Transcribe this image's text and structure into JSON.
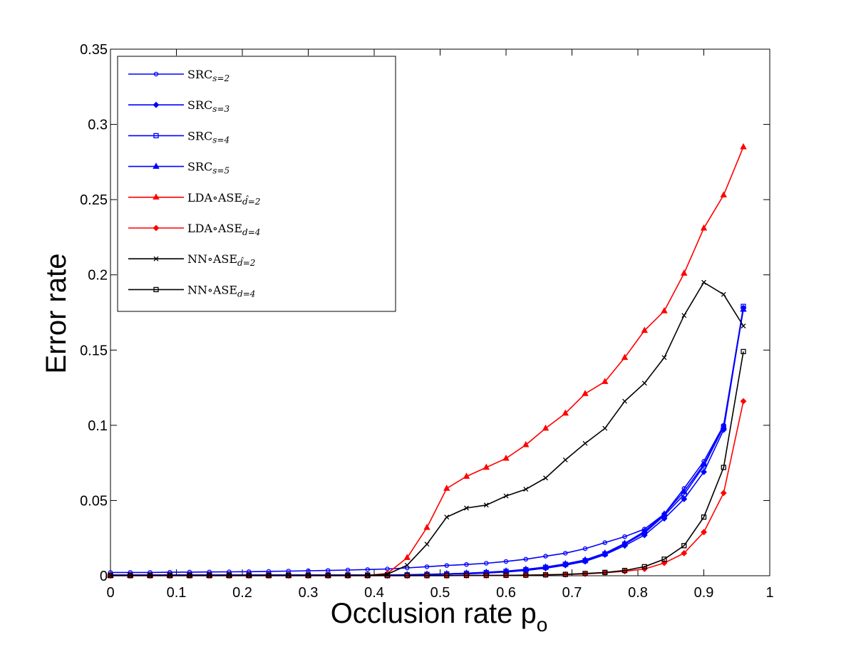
{
  "chart_data": {
    "type": "line",
    "xlabel": "Occlusion rate p",
    "xlabel_sub": "o",
    "ylabel": "Error rate",
    "xlim": [
      0,
      1
    ],
    "ylim": [
      0,
      0.35
    ],
    "grid": false,
    "legend_position": "top-left",
    "x_ticks": [
      "0",
      "0.1",
      "0.2",
      "0.3",
      "0.4",
      "0.5",
      "0.6",
      "0.7",
      "0.8",
      "0.9",
      "1"
    ],
    "y_ticks": [
      "0",
      "0.05",
      "0.1",
      "0.15",
      "0.2",
      "0.25",
      "0.3",
      "0.35"
    ],
    "x": [
      0,
      0.03,
      0.06,
      0.09,
      0.12,
      0.15,
      0.18,
      0.21,
      0.24,
      0.27,
      0.3,
      0.33,
      0.36,
      0.39,
      0.42,
      0.45,
      0.48,
      0.51,
      0.54,
      0.57,
      0.6,
      0.63,
      0.66,
      0.69,
      0.72,
      0.75,
      0.78,
      0.81,
      0.84,
      0.87,
      0.9,
      0.93,
      0.96
    ],
    "series": [
      {
        "name": "SRC",
        "name_sub": "s=2",
        "color": "#0000ff",
        "marker": "circle",
        "values": [
          0.0022,
          0.0022,
          0.0022,
          0.0023,
          0.0024,
          0.0025,
          0.0026,
          0.0027,
          0.0029,
          0.0031,
          0.0033,
          0.0035,
          0.0038,
          0.0041,
          0.0045,
          0.0052,
          0.006,
          0.0068,
          0.0075,
          0.0083,
          0.0095,
          0.011,
          0.013,
          0.015,
          0.018,
          0.022,
          0.026,
          0.031,
          0.041,
          0.058,
          0.076,
          0.1,
          0.178
        ]
      },
      {
        "name": "SRC",
        "name_sub": "s=3",
        "color": "#0000ff",
        "marker": "diamond",
        "values": [
          0.0005,
          0.0005,
          0.0005,
          0.0005,
          0.0005,
          0.0005,
          0.0005,
          0.0005,
          0.0005,
          0.0005,
          0.0005,
          0.0005,
          0.0005,
          0.0005,
          0.0005,
          0.0006,
          0.0008,
          0.001,
          0.0013,
          0.0018,
          0.0025,
          0.0035,
          0.005,
          0.007,
          0.0095,
          0.014,
          0.02,
          0.027,
          0.038,
          0.051,
          0.069,
          0.097,
          0.178
        ]
      },
      {
        "name": "SRC",
        "name_sub": "s=4",
        "color": "#0000ff",
        "marker": "square",
        "values": [
          0.0005,
          0.0005,
          0.0005,
          0.0005,
          0.0005,
          0.0005,
          0.0005,
          0.0005,
          0.0005,
          0.0005,
          0.0005,
          0.0005,
          0.0005,
          0.0005,
          0.0005,
          0.0006,
          0.0009,
          0.0012,
          0.0016,
          0.0021,
          0.0029,
          0.004,
          0.0056,
          0.0076,
          0.01,
          0.0145,
          0.021,
          0.0285,
          0.04,
          0.054,
          0.073,
          0.099,
          0.179
        ]
      },
      {
        "name": "SRC",
        "name_sub": "s=5",
        "color": "#0000ff",
        "marker": "triangle",
        "values": [
          0.0005,
          0.0005,
          0.0005,
          0.0005,
          0.0005,
          0.0005,
          0.0005,
          0.0005,
          0.0005,
          0.0005,
          0.0005,
          0.0005,
          0.0005,
          0.0005,
          0.0005,
          0.0007,
          0.001,
          0.0013,
          0.0017,
          0.0023,
          0.0031,
          0.0043,
          0.0058,
          0.0079,
          0.0105,
          0.015,
          0.0215,
          0.0295,
          0.041,
          0.056,
          0.074,
          0.099,
          0.177
        ]
      },
      {
        "name": "LDA∘ASE",
        "name_sub": "d̂=2",
        "color": "#ff0000",
        "marker": "triangle",
        "values": [
          0.0002,
          0.0002,
          0.0002,
          0.0002,
          0.0002,
          0.0002,
          0.0002,
          0.0002,
          0.0002,
          0.0002,
          0.0002,
          0.0002,
          0.0002,
          0.0003,
          0.0015,
          0.012,
          0.032,
          0.058,
          0.066,
          0.072,
          0.078,
          0.087,
          0.098,
          0.108,
          0.121,
          0.129,
          0.145,
          0.163,
          0.176,
          0.201,
          0.231,
          0.253,
          0.285
        ]
      },
      {
        "name": "LDA∘ASE",
        "name_sub": "d=4",
        "color": "#ff0000",
        "marker": "diamond",
        "values": [
          0.0001,
          0.0001,
          0.0001,
          0.0001,
          0.0001,
          0.0001,
          0.0001,
          0.0001,
          0.0001,
          0.0001,
          0.0001,
          0.0001,
          0.0001,
          0.0001,
          0.0001,
          0.0001,
          0.0001,
          0.0001,
          0.0002,
          0.0002,
          0.0003,
          0.0004,
          0.0006,
          0.0008,
          0.0012,
          0.002,
          0.003,
          0.0045,
          0.0085,
          0.015,
          0.029,
          0.055,
          0.116
        ]
      },
      {
        "name": "NN∘ASE",
        "name_sub": "d̂=2",
        "color": "#000000",
        "marker": "x",
        "values": [
          0.0002,
          0.0002,
          0.0002,
          0.0002,
          0.0002,
          0.0002,
          0.0002,
          0.0002,
          0.0002,
          0.0002,
          0.0002,
          0.0002,
          0.0002,
          0.0003,
          0.001,
          0.007,
          0.021,
          0.039,
          0.045,
          0.047,
          0.053,
          0.0575,
          0.065,
          0.077,
          0.088,
          0.098,
          0.116,
          0.128,
          0.145,
          0.173,
          0.195,
          0.187,
          0.166
        ]
      },
      {
        "name": "NN∘ASE",
        "name_sub": "d=4",
        "color": "#000000",
        "marker": "square",
        "values": [
          0.0001,
          0.0001,
          0.0001,
          0.0001,
          0.0001,
          0.0001,
          0.0001,
          0.0001,
          0.0001,
          0.0001,
          0.0001,
          0.0001,
          0.0001,
          0.0001,
          0.0001,
          0.0001,
          0.0001,
          0.0001,
          0.0002,
          0.0002,
          0.0003,
          0.0004,
          0.0006,
          0.0009,
          0.0015,
          0.0022,
          0.0035,
          0.006,
          0.011,
          0.02,
          0.039,
          0.072,
          0.149
        ]
      }
    ]
  }
}
